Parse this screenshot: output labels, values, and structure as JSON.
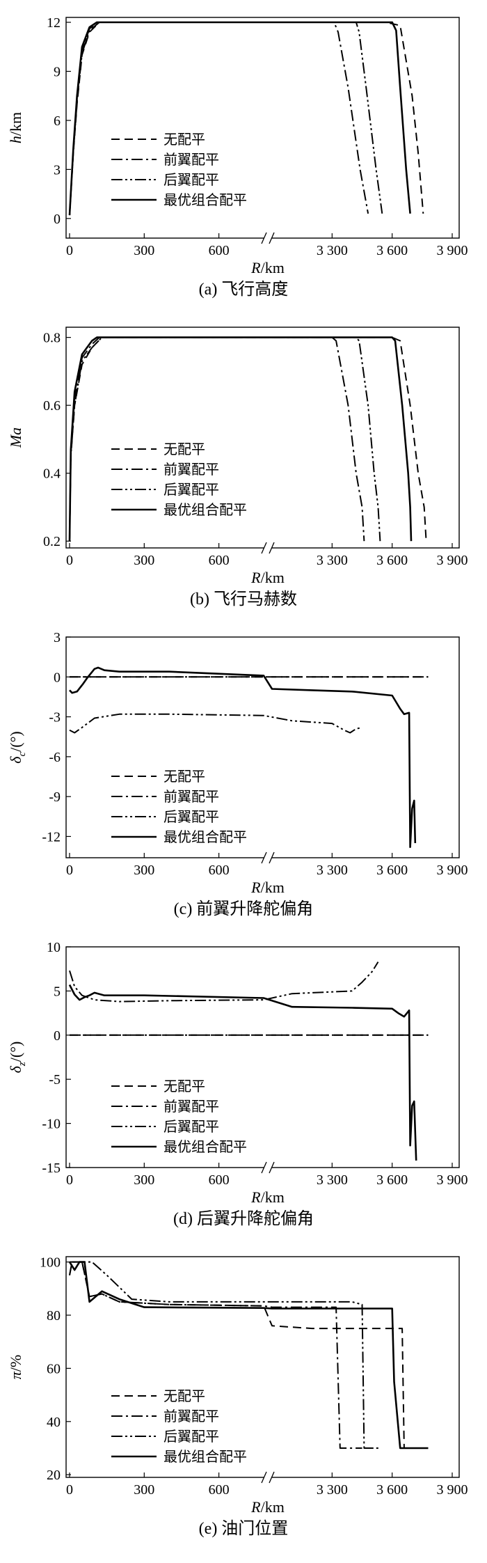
{
  "legend_labels": [
    "无配平",
    "前翼配平",
    "后翼配平",
    "最优组合配平"
  ],
  "chart_data": [
    {
      "type": "line",
      "caption": "(a) 飞行高度",
      "xlabel_var": "R",
      "xlabel_unit": "/km",
      "ylabel_var": "h",
      "ylabel_unit": "/km",
      "x_ticks": [
        "0",
        "300",
        "600",
        "3 300",
        "3 600",
        "3 900"
      ],
      "y_ticks": [
        "0",
        "3",
        "6",
        "9",
        "12"
      ],
      "ylim": [
        -1.2,
        12.3
      ],
      "legend": "left-bottom",
      "series": [
        {
          "name": "无配平",
          "points": [
            [
              0,
              0.2
            ],
            [
              15,
              4
            ],
            [
              30,
              7
            ],
            [
              50,
              10
            ],
            [
              80,
              11.4
            ],
            [
              120,
              12
            ],
            [
              3570,
              12
            ],
            [
              3640,
              11.8
            ],
            [
              3700,
              7.5
            ],
            [
              3730,
              4
            ],
            [
              3755,
              0.3
            ]
          ]
        },
        {
          "name": "前翼配平",
          "points": [
            [
              0,
              0.2
            ],
            [
              15,
              4.2
            ],
            [
              30,
              7.3
            ],
            [
              50,
              10.3
            ],
            [
              80,
              11.6
            ],
            [
              110,
              12
            ],
            [
              3310,
              12
            ],
            [
              3330,
              11.4
            ],
            [
              3380,
              8
            ],
            [
              3440,
              3
            ],
            [
              3480,
              0.3
            ]
          ]
        },
        {
          "name": "后翼配平",
          "points": [
            [
              0,
              0.2
            ],
            [
              15,
              4.1
            ],
            [
              30,
              7.1
            ],
            [
              50,
              10.1
            ],
            [
              80,
              11.5
            ],
            [
              120,
              12
            ],
            [
              3420,
              12
            ],
            [
              3435,
              11.4
            ],
            [
              3470,
              8
            ],
            [
              3520,
              3
            ],
            [
              3550,
              0.3
            ]
          ]
        },
        {
          "name": "最优组合配平",
          "points": [
            [
              0,
              0.2
            ],
            [
              15,
              4.3
            ],
            [
              30,
              7.5
            ],
            [
              50,
              10.5
            ],
            [
              80,
              11.7
            ],
            [
              110,
              12
            ],
            [
              3600,
              12
            ],
            [
              3620,
              11.5
            ],
            [
              3640,
              8
            ],
            [
              3670,
              3
            ],
            [
              3690,
              0.3
            ]
          ]
        }
      ]
    },
    {
      "type": "line",
      "caption": "(b) 飞行马赫数",
      "xlabel_var": "R",
      "xlabel_unit": "/km",
      "ylabel_var": "Ma",
      "ylabel_unit": "",
      "x_ticks": [
        "0",
        "300",
        "600",
        "3 300",
        "3 600",
        "3 900"
      ],
      "y_ticks": [
        "0.2",
        "0.4",
        "0.6",
        "0.8"
      ],
      "ylim": [
        0.18,
        0.83
      ],
      "legend": "left-bottom",
      "series": [
        {
          "name": "无配平",
          "points": [
            [
              0,
              0.2
            ],
            [
              5,
              0.45
            ],
            [
              20,
              0.6
            ],
            [
              50,
              0.72
            ],
            [
              90,
              0.77
            ],
            [
              130,
              0.8
            ],
            [
              3600,
              0.8
            ],
            [
              3640,
              0.79
            ],
            [
              3690,
              0.6
            ],
            [
              3730,
              0.4
            ],
            [
              3760,
              0.3
            ],
            [
              3770,
              0.2
            ]
          ]
        },
        {
          "name": "前翼配平",
          "points": [
            [
              0,
              0.2
            ],
            [
              5,
              0.46
            ],
            [
              20,
              0.62
            ],
            [
              50,
              0.74
            ],
            [
              90,
              0.78
            ],
            [
              120,
              0.8
            ],
            [
              3300,
              0.8
            ],
            [
              3320,
              0.79
            ],
            [
              3380,
              0.6
            ],
            [
              3420,
              0.4
            ],
            [
              3450,
              0.3
            ],
            [
              3460,
              0.2
            ]
          ]
        },
        {
          "name": "后翼配平",
          "points": [
            [
              0,
              0.2
            ],
            [
              5,
              0.45
            ],
            [
              20,
              0.6
            ],
            [
              50,
              0.73
            ],
            [
              90,
              0.77
            ],
            [
              130,
              0.8
            ],
            [
              3420,
              0.8
            ],
            [
              3435,
              0.79
            ],
            [
              3480,
              0.6
            ],
            [
              3510,
              0.4
            ],
            [
              3530,
              0.3
            ],
            [
              3540,
              0.2
            ]
          ]
        },
        {
          "name": "最优组合配平",
          "points": [
            [
              0,
              0.2
            ],
            [
              5,
              0.47
            ],
            [
              20,
              0.64
            ],
            [
              50,
              0.75
            ],
            [
              90,
              0.79
            ],
            [
              110,
              0.8
            ],
            [
              3600,
              0.8
            ],
            [
              3615,
              0.79
            ],
            [
              3650,
              0.6
            ],
            [
              3680,
              0.4
            ],
            [
              3690,
              0.3
            ],
            [
              3695,
              0.2
            ]
          ]
        }
      ]
    },
    {
      "type": "line",
      "caption": "(c) 前翼升降舵偏角",
      "xlabel_var": "R",
      "xlabel_unit": "/km",
      "ylabel_var": "δ",
      "ylabel_sub": "c",
      "ylabel_unit": "/(°)",
      "x_ticks": [
        "0",
        "300",
        "600",
        "3 300",
        "3 600",
        "3 900"
      ],
      "y_ticks": [
        "-12",
        "-9",
        "-6",
        "-3",
        "0",
        "3"
      ],
      "ylim": [
        -13.6,
        3
      ],
      "legend": "left-bottom",
      "series": [
        {
          "name": "无配平",
          "points": [
            [
              0,
              0
            ],
            [
              3780,
              0
            ]
          ]
        },
        {
          "name": "前翼配平",
          "points": [
            [
              0,
              0
            ],
            [
              3780,
              0
            ]
          ]
        },
        {
          "name": "后翼配平",
          "points": [
            [
              0,
              -4
            ],
            [
              20,
              -4.2
            ],
            [
              50,
              -3.8
            ],
            [
              100,
              -3.1
            ],
            [
              200,
              -2.8
            ],
            [
              400,
              -2.8
            ],
            [
              780,
              -2.9
            ],
            [
              3100,
              -3.3
            ],
            [
              3300,
              -3.5
            ],
            [
              3360,
              -4
            ],
            [
              3390,
              -4.2
            ],
            [
              3420,
              -3.9
            ],
            [
              3450,
              -3.8
            ]
          ]
        },
        {
          "name": "最优组合配平",
          "points": [
            [
              0,
              -1
            ],
            [
              10,
              -1.2
            ],
            [
              30,
              -1.1
            ],
            [
              55,
              -0.5
            ],
            [
              70,
              -0.1
            ],
            [
              100,
              0.6
            ],
            [
              115,
              0.7
            ],
            [
              140,
              0.5
            ],
            [
              200,
              0.4
            ],
            [
              400,
              0.4
            ],
            [
              780,
              0.1
            ],
            [
              3000,
              -0.9
            ],
            [
              3200,
              -1
            ],
            [
              3400,
              -1.1
            ],
            [
              3600,
              -1.4
            ],
            [
              3640,
              -2.4
            ],
            [
              3660,
              -2.8
            ],
            [
              3685,
              -2.7
            ],
            [
              3690,
              -12.8
            ],
            [
              3700,
              -9.9
            ],
            [
              3710,
              -9.3
            ],
            [
              3715,
              -12.5
            ]
          ]
        }
      ]
    },
    {
      "type": "line",
      "caption": "(d) 后翼升降舵偏角",
      "xlabel_var": "R",
      "xlabel_unit": "/km",
      "ylabel_var": "δ",
      "ylabel_sub": "z",
      "ylabel_unit": "/(°)",
      "x_ticks": [
        "0",
        "300",
        "600",
        "3 300",
        "3 600",
        "3 900"
      ],
      "y_ticks": [
        "-15",
        "-10",
        "-5",
        "0",
        "5",
        "10"
      ],
      "ylim": [
        -15,
        10
      ],
      "legend": "left-bottom",
      "series": [
        {
          "name": "无配平",
          "points": [
            [
              0,
              0
            ],
            [
              3780,
              0
            ]
          ]
        },
        {
          "name": "前翼配平",
          "points": [
            [
              0,
              0
            ],
            [
              3780,
              0
            ]
          ]
        },
        {
          "name": "后翼配平",
          "points": [
            [
              0,
              7.3
            ],
            [
              20,
              5.5
            ],
            [
              50,
              4.5
            ],
            [
              100,
              4
            ],
            [
              200,
              3.8
            ],
            [
              400,
              3.9
            ],
            [
              780,
              4
            ],
            [
              3100,
              4.7
            ],
            [
              3400,
              5
            ],
            [
              3450,
              6
            ],
            [
              3500,
              7.2
            ],
            [
              3530,
              8.3
            ]
          ]
        },
        {
          "name": "最优组合配平",
          "points": [
            [
              0,
              5.7
            ],
            [
              20,
              4.6
            ],
            [
              40,
              4
            ],
            [
              60,
              4.3
            ],
            [
              80,
              4.5
            ],
            [
              100,
              4.8
            ],
            [
              140,
              4.5
            ],
            [
              300,
              4.5
            ],
            [
              780,
              4.2
            ],
            [
              3100,
              3.2
            ],
            [
              3400,
              3.1
            ],
            [
              3600,
              3
            ],
            [
              3630,
              2.5
            ],
            [
              3660,
              2.1
            ],
            [
              3685,
              2.8
            ],
            [
              3690,
              -12.5
            ],
            [
              3700,
              -8
            ],
            [
              3710,
              -7.5
            ],
            [
              3720,
              -14.2
            ]
          ]
        }
      ]
    },
    {
      "type": "line",
      "caption": "(e) 油门位置",
      "xlabel_var": "R",
      "xlabel_unit": "/km",
      "ylabel_var": "π",
      "ylabel_unit": "/%",
      "x_ticks": [
        "0",
        "300",
        "600",
        "3 300",
        "3 600",
        "3 900"
      ],
      "y_ticks": [
        "20",
        "40",
        "60",
        "80",
        "100"
      ],
      "ylim": [
        19,
        102
      ],
      "legend": "left-bottom",
      "series": [
        {
          "name": "无配平",
          "points": [
            [
              0,
              95
            ],
            [
              10,
              100
            ],
            [
              50,
              100
            ],
            [
              80,
              87
            ],
            [
              130,
              88
            ],
            [
              200,
              85
            ],
            [
              400,
              84
            ],
            [
              780,
              83.5
            ],
            [
              3000,
              76
            ],
            [
              3200,
              75
            ],
            [
              3600,
              75
            ],
            [
              3650,
              75
            ],
            [
              3660,
              30
            ],
            [
              3780,
              30
            ]
          ]
        },
        {
          "name": "前翼配平",
          "points": [
            [
              0,
              95
            ],
            [
              10,
              100
            ],
            [
              50,
              100
            ],
            [
              80,
              87
            ],
            [
              130,
              88
            ],
            [
              200,
              85
            ],
            [
              400,
              84
            ],
            [
              780,
              83.5
            ],
            [
              3000,
              83
            ],
            [
              3300,
              83
            ],
            [
              3320,
              83
            ],
            [
              3340,
              30
            ],
            [
              3450,
              30
            ]
          ]
        },
        {
          "name": "后翼配平",
          "points": [
            [
              0,
              100
            ],
            [
              90,
              100
            ],
            [
              150,
              95
            ],
            [
              250,
              86
            ],
            [
              400,
              85
            ],
            [
              780,
              85
            ],
            [
              3400,
              85
            ],
            [
              3450,
              84
            ],
            [
              3460,
              30
            ],
            [
              3540,
              30
            ]
          ]
        },
        {
          "name": "最优组合配平",
          "points": [
            [
              0,
              100
            ],
            [
              20,
              97
            ],
            [
              40,
              100
            ],
            [
              60,
              100
            ],
            [
              80,
              85
            ],
            [
              130,
              89
            ],
            [
              200,
              86
            ],
            [
              300,
              83
            ],
            [
              780,
              82.7
            ],
            [
              3000,
              82.5
            ],
            [
              3600,
              82.5
            ],
            [
              3610,
              55
            ],
            [
              3640,
              30
            ],
            [
              3780,
              30
            ]
          ]
        }
      ]
    }
  ]
}
